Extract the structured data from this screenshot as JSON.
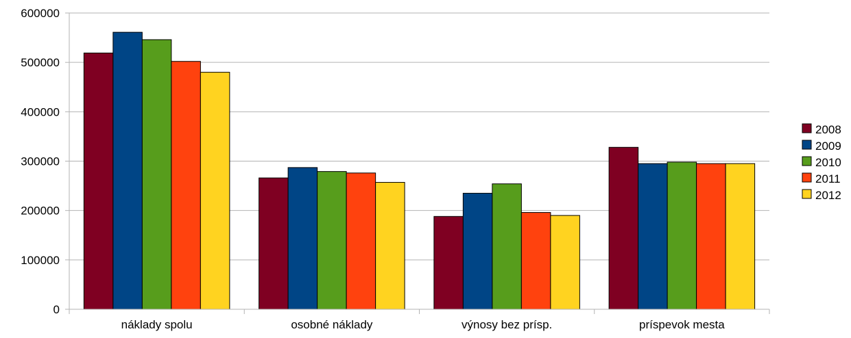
{
  "chart_data": {
    "type": "bar",
    "title": "",
    "xlabel": "",
    "ylabel": "",
    "categories": [
      "náklady spolu",
      "osobné náklady",
      "výnosy bez prísp.",
      "príspevok mesta"
    ],
    "ylim": [
      0,
      600000
    ],
    "yticks": [
      "0",
      "100000",
      "200000",
      "300000",
      "400000",
      "500000",
      "600000"
    ],
    "grid": true,
    "legend_position": "right",
    "series": [
      {
        "name": "2008",
        "color": "#7f0022",
        "values": [
          519000,
          266000,
          188000,
          328000
        ]
      },
      {
        "name": "2009",
        "color": "#004586",
        "values": [
          561000,
          287000,
          235000,
          295000
        ]
      },
      {
        "name": "2010",
        "color": "#579d1c",
        "values": [
          546000,
          279000,
          254000,
          298000
        ]
      },
      {
        "name": "2011",
        "color": "#ff420e",
        "values": [
          502000,
          276000,
          196000,
          295000
        ]
      },
      {
        "name": "2012",
        "color": "#ffd320",
        "values": [
          480000,
          257000,
          190000,
          295000
        ]
      }
    ]
  }
}
